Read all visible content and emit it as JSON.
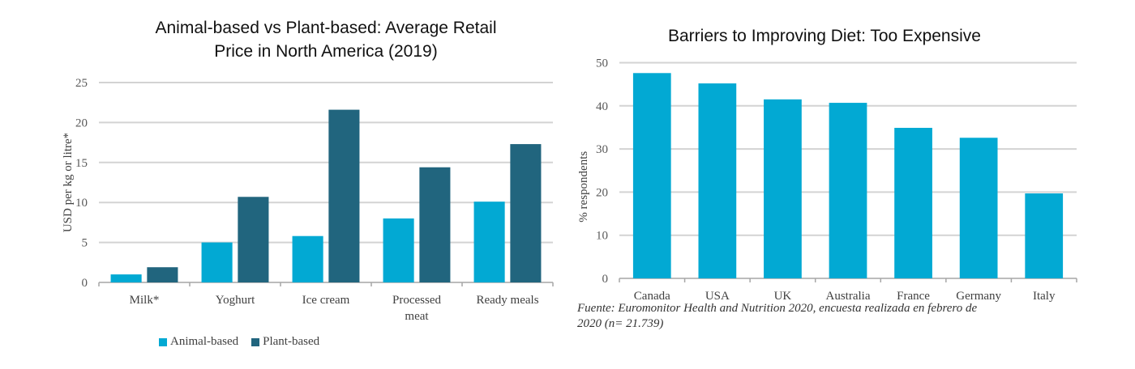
{
  "chart_data": [
    {
      "type": "bar",
      "title": "Animal-based vs Plant-based: Average Retail Price in North America (2019)",
      "title_lines": [
        "Animal-based vs Plant-based: Average Retail",
        "Price in North America (2019)"
      ],
      "xlabel": "",
      "ylabel": "USD per kg or litre*",
      "ylim": [
        0,
        25
      ],
      "yticks": [
        0,
        5,
        10,
        15,
        20,
        25
      ],
      "grid": true,
      "legend_position": "bottom",
      "categories": [
        "Milk*",
        "Yoghurt",
        "Ice cream",
        "Processed meat",
        "Ready meals"
      ],
      "category_lines": [
        [
          "Milk*"
        ],
        [
          "Yoghurt"
        ],
        [
          "Ice cream"
        ],
        [
          "Processed",
          "meat"
        ],
        [
          "Ready meals"
        ]
      ],
      "series": [
        {
          "name": "Animal-based",
          "color": "#02A9D3",
          "values": [
            1.0,
            5.0,
            5.8,
            8.0,
            10.1
          ]
        },
        {
          "name": "Plant-based",
          "color": "#21657E",
          "values": [
            1.9,
            10.7,
            21.6,
            14.4,
            17.3
          ]
        }
      ]
    },
    {
      "type": "bar",
      "title": "Barriers to Improving Diet: Too Expensive",
      "xlabel": "",
      "ylabel": "% respondents",
      "ylim": [
        0,
        50
      ],
      "yticks": [
        0,
        10,
        20,
        30,
        40,
        50
      ],
      "grid": true,
      "categories": [
        "Canada",
        "USA",
        "UK",
        "Australia",
        "France",
        "Germany",
        "Italy"
      ],
      "series": [
        {
          "name": "Too Expensive",
          "color": "#02A9D3",
          "values": [
            47.6,
            45.2,
            41.5,
            40.7,
            34.9,
            32.6,
            19.7
          ]
        }
      ],
      "source_note": "Fuente: Euromonitor Health and Nutrition 2020, encuesta realizada en febrero de 2020 (n= 21.739)"
    }
  ]
}
